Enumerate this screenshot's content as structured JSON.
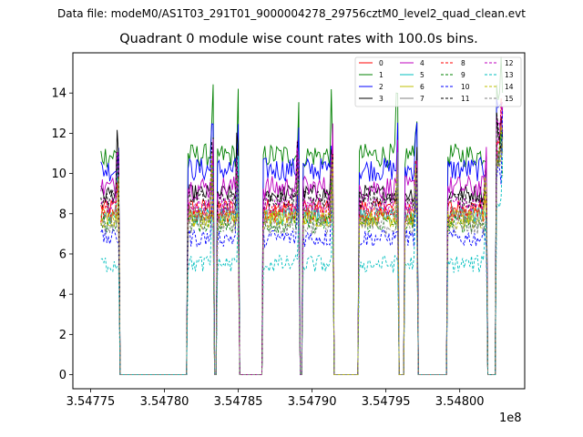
{
  "chart_data": {
    "type": "line",
    "suptitle": "Data file: modeM0/AS1T03_291T01_9000004278_29756cztM0_level2_quad_clean.evt",
    "title": "Quadrant 0 module wise count rates with 100.0s bins.",
    "xlabel": "",
    "ylabel": "",
    "x_multiplier": "1e8",
    "xlim": [
      354773800,
      354804400
    ],
    "ylim": [
      -0.7,
      16
    ],
    "xticks": [
      354775000,
      354780000,
      354785000,
      354790000,
      354795000,
      354800000
    ],
    "xtick_labels": [
      "3.54775",
      "3.54780",
      "3.54785",
      "3.54790",
      "3.54795",
      "3.54800"
    ],
    "yticks": [
      0,
      2,
      4,
      6,
      8,
      10,
      12,
      14
    ],
    "ytick_labels": [
      "0",
      "2",
      "4",
      "6",
      "8",
      "10",
      "12",
      "14"
    ],
    "legend_position": "top-right",
    "bin_size_s": 100,
    "active_segments": [
      [
        354775700,
        354776900
      ],
      [
        354781600,
        354783300
      ],
      [
        354783600,
        354785000
      ],
      [
        354786700,
        354789100
      ],
      [
        354789400,
        354791400
      ],
      [
        354793200,
        354795800
      ],
      [
        354796300,
        354797100
      ],
      [
        354799200,
        354801800
      ],
      [
        354802500,
        354802900
      ]
    ],
    "series": [
      {
        "name": "0",
        "color": "#ff0000",
        "dash": "solid",
        "mean": 8.3
      },
      {
        "name": "1",
        "color": "#008000",
        "dash": "solid",
        "mean": 10.9
      },
      {
        "name": "2",
        "color": "#0000ff",
        "dash": "solid",
        "mean": 10.2
      },
      {
        "name": "3",
        "color": "#000000",
        "dash": "solid",
        "mean": 9.0
      },
      {
        "name": "4",
        "color": "#bf00bf",
        "dash": "solid",
        "mean": 9.3
      },
      {
        "name": "5",
        "color": "#00bfbf",
        "dash": "solid",
        "mean": 7.9
      },
      {
        "name": "6",
        "color": "#bfbf00",
        "dash": "solid",
        "mean": 7.8
      },
      {
        "name": "7",
        "color": "#808080",
        "dash": "solid",
        "mean": 8.0
      },
      {
        "name": "8",
        "color": "#ff0000",
        "dash": "dashed",
        "mean": 8.0
      },
      {
        "name": "9",
        "color": "#008000",
        "dash": "dashed",
        "mean": 7.5
      },
      {
        "name": "10",
        "color": "#0000ff",
        "dash": "dashed",
        "mean": 6.8
      },
      {
        "name": "11",
        "color": "#000000",
        "dash": "dashed",
        "mean": 8.7
      },
      {
        "name": "12",
        "color": "#bf00bf",
        "dash": "dashed",
        "mean": 8.4
      },
      {
        "name": "13",
        "color": "#00bfbf",
        "dash": "dashed",
        "mean": 5.5
      },
      {
        "name": "14",
        "color": "#bfbf00",
        "dash": "dashed",
        "mean": 7.7
      },
      {
        "name": "15",
        "color": "#808080",
        "dash": "dashed",
        "mean": 7.4
      }
    ]
  }
}
